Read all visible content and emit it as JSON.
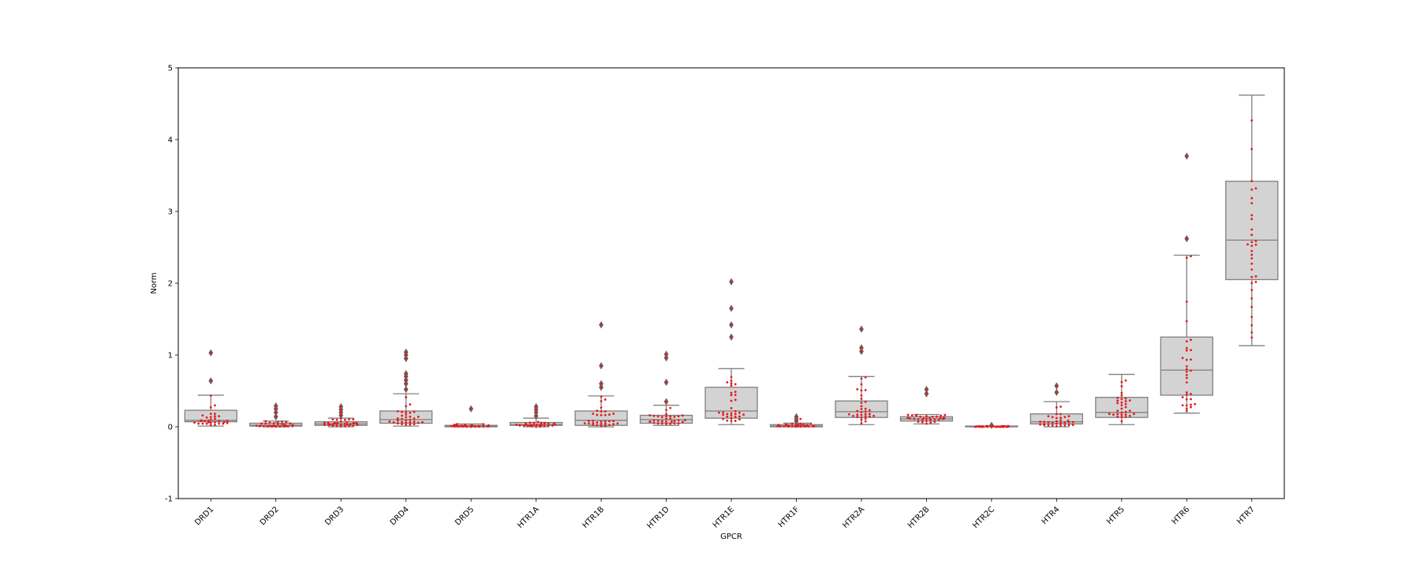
{
  "chart_data": {
    "type": "box",
    "xlabel": "GPCR",
    "ylabel": "Norm",
    "ylim": [
      -1,
      5
    ],
    "yticks": [
      -1,
      0,
      1,
      2,
      3,
      4,
      5
    ],
    "grid": false,
    "box_color": "#d3d3d3",
    "box_edge_color": "#808080",
    "point_color": "#e41a1c",
    "categories": [
      "DRD1",
      "DRD2",
      "DRD3",
      "DRD4",
      "DRD5",
      "HTR1A",
      "HTR1B",
      "HTR1D",
      "HTR1E",
      "HTR1F",
      "HTR2A",
      "HTR2B",
      "HTR2C",
      "HTR4",
      "HTR5",
      "HTR6",
      "HTR7"
    ],
    "boxes": [
      {
        "category": "DRD1",
        "whislo": 0.01,
        "q1": 0.07,
        "med": 0.09,
        "q3": 0.23,
        "whishi": 0.44,
        "fliers": [
          0.64,
          1.03
        ]
      },
      {
        "category": "DRD2",
        "whislo": 0.0,
        "q1": 0.01,
        "med": 0.02,
        "q3": 0.05,
        "whishi": 0.08,
        "fliers": [
          0.14,
          0.2,
          0.25,
          0.29
        ]
      },
      {
        "category": "DRD3",
        "whislo": 0.0,
        "q1": 0.02,
        "med": 0.04,
        "q3": 0.07,
        "whishi": 0.12,
        "fliers": [
          0.16,
          0.2,
          0.24,
          0.28
        ]
      },
      {
        "category": "DRD4",
        "whislo": 0.01,
        "q1": 0.05,
        "med": 0.1,
        "q3": 0.22,
        "whishi": 0.46,
        "fliers": [
          0.52,
          0.6,
          0.65,
          0.7,
          0.74,
          0.95,
          1.0,
          1.04
        ]
      },
      {
        "category": "DRD5",
        "whislo": 0.0,
        "q1": 0.0,
        "med": 0.01,
        "q3": 0.02,
        "whishi": 0.04,
        "fliers": [
          0.25
        ]
      },
      {
        "category": "HTR1A",
        "whislo": 0.0,
        "q1": 0.02,
        "med": 0.03,
        "q3": 0.06,
        "whishi": 0.12,
        "fliers": [
          0.15,
          0.2,
          0.24,
          0.28
        ]
      },
      {
        "category": "HTR1B",
        "whislo": 0.0,
        "q1": 0.02,
        "med": 0.09,
        "q3": 0.22,
        "whishi": 0.43,
        "fliers": [
          0.55,
          0.6,
          0.85,
          1.42
        ]
      },
      {
        "category": "HTR1D",
        "whislo": 0.02,
        "q1": 0.05,
        "med": 0.1,
        "q3": 0.16,
        "whishi": 0.3,
        "fliers": [
          0.35,
          0.62,
          0.96,
          1.01
        ]
      },
      {
        "category": "HTR1E",
        "whislo": 0.03,
        "q1": 0.12,
        "med": 0.22,
        "q3": 0.55,
        "whishi": 0.81,
        "fliers": [
          1.25,
          1.42,
          1.65,
          2.02
        ]
      },
      {
        "category": "HTR1F",
        "whislo": 0.0,
        "q1": 0.0,
        "med": 0.01,
        "q3": 0.03,
        "whishi": 0.05,
        "fliers": [
          0.08,
          0.11,
          0.14
        ]
      },
      {
        "category": "HTR2A",
        "whislo": 0.03,
        "q1": 0.13,
        "med": 0.21,
        "q3": 0.36,
        "whishi": 0.7,
        "fliers": [
          1.05,
          1.1,
          1.36
        ]
      },
      {
        "category": "HTR2B",
        "whislo": 0.04,
        "q1": 0.08,
        "med": 0.11,
        "q3": 0.14,
        "whishi": 0.17,
        "fliers": [
          0.46,
          0.52
        ]
      },
      {
        "category": "HTR2C",
        "whislo": 0.0,
        "q1": 0.0,
        "med": 0.0,
        "q3": 0.01,
        "whishi": 0.01,
        "fliers": [
          0.02
        ]
      },
      {
        "category": "HTR4",
        "whislo": 0.0,
        "q1": 0.04,
        "med": 0.07,
        "q3": 0.18,
        "whishi": 0.35,
        "fliers": [
          0.48,
          0.57
        ]
      },
      {
        "category": "HTR5",
        "whislo": 0.03,
        "q1": 0.13,
        "med": 0.2,
        "q3": 0.41,
        "whishi": 0.73,
        "fliers": []
      },
      {
        "category": "HTR6",
        "whislo": 0.19,
        "q1": 0.44,
        "med": 0.79,
        "q3": 1.25,
        "whishi": 2.39,
        "fliers": [
          2.62,
          3.77
        ]
      },
      {
        "category": "HTR7",
        "whislo": 1.13,
        "q1": 2.05,
        "med": 2.6,
        "q3": 3.42,
        "whishi": 4.62,
        "fliers": []
      }
    ]
  }
}
